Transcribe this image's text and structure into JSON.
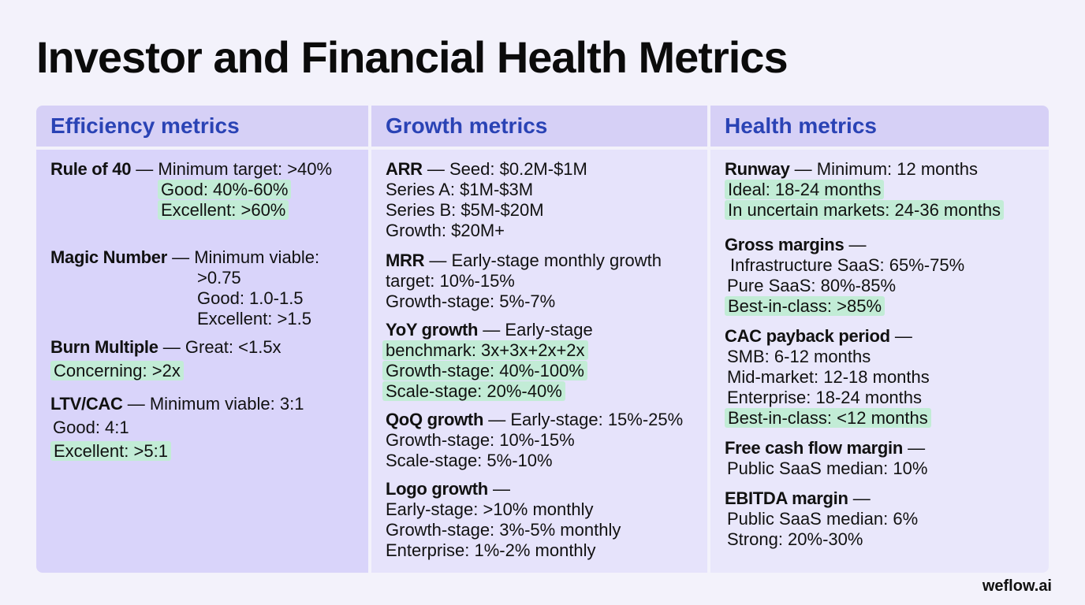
{
  "title": "Investor and Financial Health Metrics",
  "brand": "weflow.ai",
  "columns": [
    {
      "heading": "Efficiency metrics",
      "rule40": {
        "name": "Rule of 40",
        "sep": " — ",
        "l1": "Minimum target: >40%",
        "l2": "Good: 40%-60%",
        "l3": "Excellent: >60%"
      },
      "magic": {
        "name": "Magic Number",
        "sep": " — ",
        "l1": "Minimum viable:",
        "l2": ">0.75",
        "l3": "Good: 1.0-1.5",
        "l4": "Excellent: >1.5"
      },
      "burn": {
        "name": "Burn Multiple",
        "sep": " — ",
        "l1": "Great: <1.5x",
        "l2": "Concerning: >2x"
      },
      "ltv": {
        "name": "LTV/CAC",
        "sep": " — ",
        "l1": "Minimum viable: 3:1",
        "l2": "Good: 4:1",
        "l3": "Excellent: >5:1"
      }
    },
    {
      "heading": "Growth metrics",
      "arr": {
        "name": "ARR",
        "sep": " — ",
        "l1": "Seed: $0.2M-$1M",
        "l2": "Series A: $1M-$3M",
        "l3": "Series B: $5M-$20M",
        "l4": "Growth: $20M+"
      },
      "mrr": {
        "name": "MRR",
        "sep": " — ",
        "l1": "Early-stage monthly growth",
        "l2": "target: 10%-15%",
        "l3": "Growth-stage: 5%-7%"
      },
      "yoy": {
        "name": "YoY growth",
        "sep": " — ",
        "l1": "Early-stage",
        "l2": "benchmark: 3x+3x+2x+2x",
        "l3": "Growth-stage: 40%-100%",
        "l4": "Scale-stage: 20%-40%"
      },
      "qoq": {
        "name": "QoQ growth",
        "sep": " — ",
        "l1": "Early-stage: 15%-25%",
        "l2": "Growth-stage: 10%-15%",
        "l3": "Scale-stage: 5%-10%"
      },
      "logo": {
        "name": "Logo growth",
        "sep": " —",
        "l1": "Early-stage: >10% monthly",
        "l2": "Growth-stage: 3%-5% monthly",
        "l3": "Enterprise: 1%-2% monthly"
      }
    },
    {
      "heading": "Health metrics",
      "runway": {
        "name": "Runway",
        "sep": " — ",
        "l1": "Minimum: 12 months",
        "l2": "Ideal: 18-24 months",
        "l3": "In uncertain markets: 24-36 months"
      },
      "gross": {
        "name": "Gross margins",
        "sep": " —",
        "l1": "Infrastructure SaaS: 65%-75%",
        "l2": "Pure SaaS: 80%-85%",
        "l3": "Best-in-class: >85%"
      },
      "cac": {
        "name": "CAC payback period",
        "sep": " —",
        "l1": "SMB: 6-12 months",
        "l2": "Mid-market: 12-18 months",
        "l3": "Enterprise: 18-24 months",
        "l4": "Best-in-class: <12 months"
      },
      "fcf": {
        "name": "Free cash flow margin",
        "sep": " —",
        "l1": "Public SaaS median: 10%"
      },
      "ebitda": {
        "name": "EBITDA margin",
        "sep": " —",
        "l1": "Public SaaS median: 6%",
        "l2": "Strong: 20%-30%"
      }
    }
  ]
}
